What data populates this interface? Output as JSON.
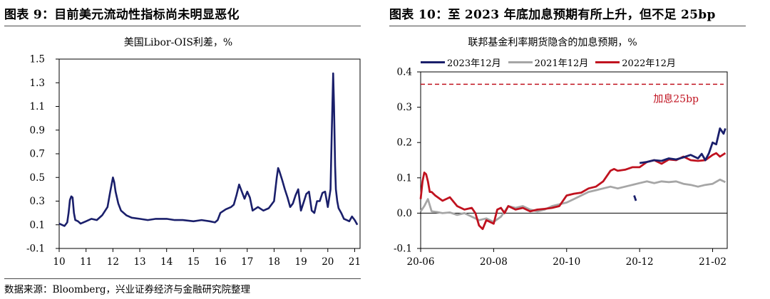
{
  "left": {
    "figure_title": "图表 9：目前美元流动性指标尚未明显恶化",
    "source": "数据来源：Bloomberg，兴业证券经济与金融研究院整理",
    "color": "#1a1f6b"
  },
  "right": {
    "figure_title": "图表 10：至 2023 年底加息预期有所上升，但不足 25bp",
    "source": "数据来源：Bloomberg，兴业证券经济与金融研究院整理",
    "annotation": "加息25bp",
    "colors": {
      "s2023": "#1a1f6b",
      "s2021": "#a6a6a6",
      "s2022": "#c0121f",
      "ref": "#c0121f"
    }
  },
  "chart_data": [
    {
      "type": "line",
      "title": "美国Libor-OIS利差，%",
      "xlabel": "",
      "ylabel": "",
      "x_ticks": [
        "10",
        "11",
        "12",
        "13",
        "14",
        "15",
        "16",
        "17",
        "18",
        "19",
        "20",
        "21"
      ],
      "y_ticks": [
        "-0.1",
        "0.1",
        "0.3",
        "0.5",
        "0.7",
        "0.9",
        "1.1",
        "1.3",
        "1.5"
      ],
      "xlim": [
        10,
        21.2
      ],
      "ylim": [
        -0.1,
        1.5
      ],
      "grid": false,
      "series": [
        {
          "x": [
            10.0,
            10.1,
            10.2,
            10.3,
            10.35,
            10.4,
            10.45,
            10.5,
            10.55,
            10.6,
            10.7,
            10.8,
            11.0,
            11.2,
            11.4,
            11.6,
            11.8,
            11.9,
            12.0,
            12.05,
            12.1,
            12.2,
            12.3,
            12.5,
            12.7,
            13.0,
            13.3,
            13.6,
            14.0,
            14.3,
            14.6,
            15.0,
            15.3,
            15.6,
            15.8,
            15.9,
            16.0,
            16.2,
            16.4,
            16.5,
            16.6,
            16.7,
            16.8,
            16.9,
            17.0,
            17.1,
            17.2,
            17.4,
            17.6,
            17.8,
            18.0,
            18.1,
            18.15,
            18.2,
            18.3,
            18.4,
            18.5,
            18.6,
            18.7,
            18.8,
            18.9,
            19.0,
            19.1,
            19.2,
            19.3,
            19.4,
            19.5,
            19.6,
            19.7,
            19.8,
            19.9,
            20.0,
            20.1,
            20.15,
            20.2,
            20.23,
            20.27,
            20.3,
            20.35,
            20.4,
            20.5,
            20.6,
            20.7,
            20.8,
            20.9,
            21.0,
            21.1
          ],
          "y": [
            0.11,
            0.1,
            0.09,
            0.12,
            0.2,
            0.31,
            0.34,
            0.33,
            0.2,
            0.14,
            0.13,
            0.11,
            0.13,
            0.15,
            0.14,
            0.18,
            0.25,
            0.38,
            0.5,
            0.46,
            0.38,
            0.28,
            0.22,
            0.18,
            0.16,
            0.15,
            0.14,
            0.15,
            0.15,
            0.14,
            0.14,
            0.13,
            0.14,
            0.13,
            0.12,
            0.14,
            0.2,
            0.23,
            0.25,
            0.27,
            0.35,
            0.44,
            0.38,
            0.32,
            0.38,
            0.33,
            0.22,
            0.25,
            0.22,
            0.24,
            0.3,
            0.5,
            0.58,
            0.55,
            0.48,
            0.4,
            0.33,
            0.25,
            0.28,
            0.35,
            0.4,
            0.22,
            0.29,
            0.36,
            0.38,
            0.22,
            0.2,
            0.3,
            0.3,
            0.37,
            0.38,
            0.25,
            0.4,
            0.9,
            1.38,
            1.1,
            0.6,
            0.4,
            0.3,
            0.24,
            0.2,
            0.15,
            0.14,
            0.13,
            0.17,
            0.14,
            0.1
          ]
        }
      ]
    },
    {
      "type": "line",
      "title": "联邦基金利率期货隐含的加息预期，%",
      "xlabel": "",
      "ylabel": "",
      "x_ticks": [
        "20-06",
        "20-08",
        "20-10",
        "20-12",
        "21-02"
      ],
      "y_ticks": [
        "-0.1",
        "0.0",
        "0.1",
        "0.2",
        "0.3",
        "0.4"
      ],
      "xlim": [
        0,
        8.4
      ],
      "ylim": [
        -0.1,
        0.4
      ],
      "grid": false,
      "reference_line": 0.365,
      "series": [
        {
          "name": "2023年12月",
          "x": [
            5.85,
            5.9
          ],
          "y": [
            0.05,
            0.035
          ]
        },
        {
          "name": "2023年12月",
          "x": [
            6.0,
            6.2,
            6.4,
            6.6,
            6.8,
            7.0,
            7.2,
            7.4,
            7.6,
            7.7,
            7.8,
            7.9,
            8.0,
            8.1,
            8.2,
            8.3,
            8.35
          ],
          "y": [
            0.142,
            0.145,
            0.15,
            0.148,
            0.155,
            0.152,
            0.158,
            0.165,
            0.155,
            0.168,
            0.15,
            0.17,
            0.2,
            0.195,
            0.24,
            0.225,
            0.24
          ]
        },
        {
          "name": "2021年12月",
          "x": [
            0.0,
            0.1,
            0.2,
            0.3,
            0.45,
            0.6,
            0.8,
            1.0,
            1.2,
            1.4,
            1.6,
            1.8,
            2.0,
            2.2,
            2.4,
            2.6,
            2.8,
            3.0,
            3.2,
            3.4,
            3.6,
            3.8,
            4.0,
            4.2,
            4.4,
            4.6,
            4.8,
            5.0,
            5.2,
            5.4,
            5.6,
            5.8,
            6.0,
            6.2,
            6.4,
            6.6,
            6.8,
            7.0,
            7.2,
            7.4,
            7.6,
            7.8,
            8.0,
            8.2,
            8.35
          ],
          "y": [
            0.005,
            0.02,
            0.04,
            0.005,
            0.003,
            0.0,
            0.002,
            -0.005,
            0.0,
            -0.01,
            -0.02,
            -0.015,
            -0.025,
            -0.01,
            0.02,
            0.015,
            0.02,
            0.01,
            0.005,
            0.01,
            0.02,
            0.025,
            0.03,
            0.04,
            0.05,
            0.06,
            0.065,
            0.07,
            0.075,
            0.07,
            0.075,
            0.08,
            0.085,
            0.09,
            0.085,
            0.09,
            0.088,
            0.09,
            0.083,
            0.08,
            0.075,
            0.08,
            0.083,
            0.095,
            0.088
          ]
        },
        {
          "name": "2022年12月",
          "x": [
            0.0,
            0.05,
            0.1,
            0.15,
            0.2,
            0.25,
            0.3,
            0.4,
            0.6,
            0.8,
            1.0,
            1.2,
            1.4,
            1.5,
            1.6,
            1.7,
            1.8,
            1.9,
            2.0,
            2.1,
            2.2,
            2.3,
            2.4,
            2.6,
            2.8,
            3.0,
            3.2,
            3.4,
            3.6,
            3.8,
            4.0,
            4.2,
            4.4,
            4.6,
            4.8,
            5.0,
            5.2,
            5.3,
            5.4,
            5.6,
            5.8,
            6.0,
            6.2,
            6.4,
            6.6,
            6.8,
            7.0,
            7.2,
            7.4,
            7.6,
            7.8,
            8.0,
            8.1,
            8.2,
            8.35
          ],
          "y": [
            0.04,
            0.09,
            0.115,
            0.11,
            0.09,
            0.06,
            0.06,
            0.05,
            0.035,
            0.045,
            0.02,
            0.01,
            0.015,
            0.0,
            -0.035,
            -0.045,
            -0.02,
            -0.025,
            -0.03,
            0.01,
            0.015,
            0.0,
            0.02,
            0.01,
            0.015,
            0.005,
            0.01,
            0.012,
            0.015,
            0.02,
            0.05,
            0.055,
            0.058,
            0.07,
            0.075,
            0.09,
            0.12,
            0.125,
            0.12,
            0.123,
            0.13,
            0.13,
            0.145,
            0.15,
            0.14,
            0.152,
            0.15,
            0.16,
            0.15,
            0.148,
            0.15,
            0.165,
            0.17,
            0.16,
            0.17
          ]
        }
      ]
    }
  ]
}
